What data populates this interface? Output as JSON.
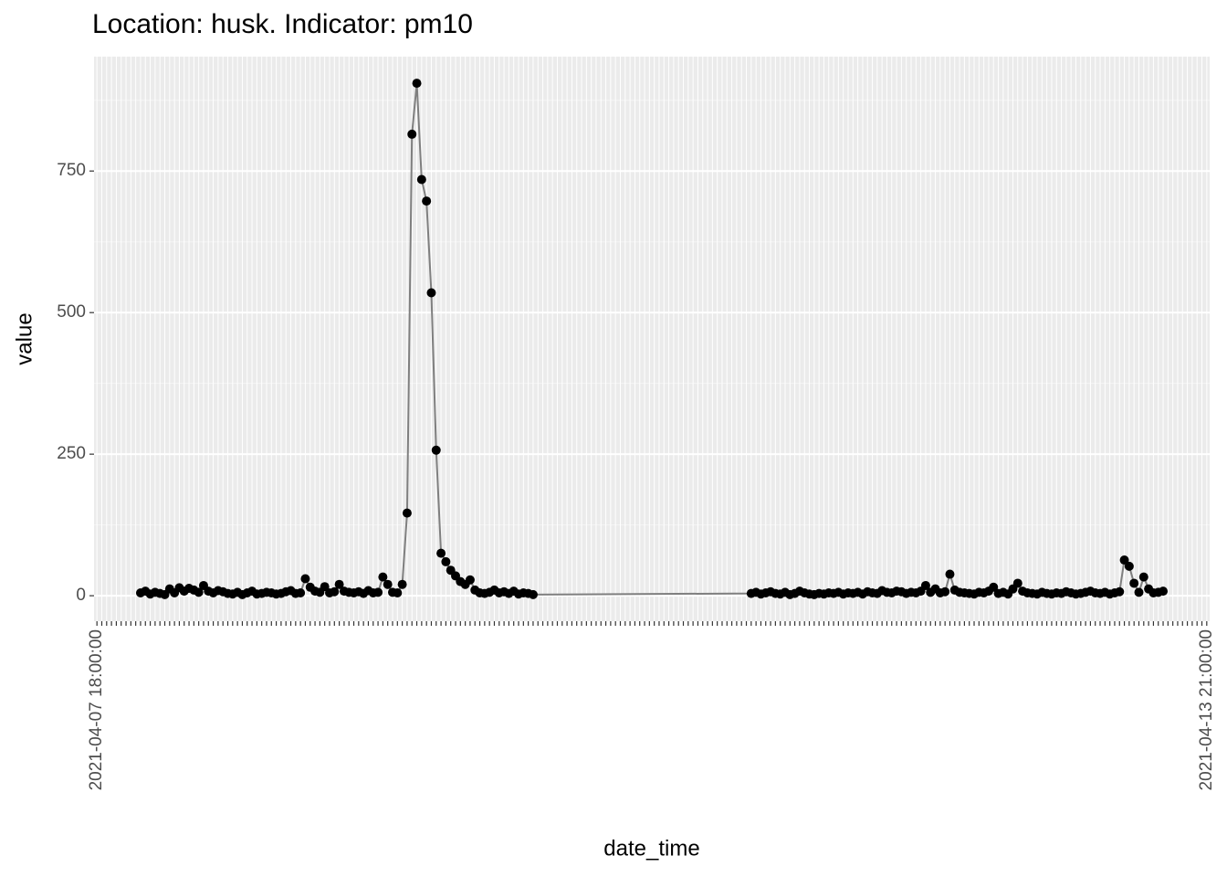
{
  "chart_data": {
    "type": "line",
    "title": "Location: husk. Indicator: pm10",
    "x_label": "date_time",
    "y_label": "value",
    "x": [
      10,
      11,
      12,
      13,
      14,
      15,
      16,
      17,
      18,
      19,
      20,
      21,
      22,
      23,
      24,
      25,
      26,
      27,
      28,
      29,
      30,
      31,
      32,
      33,
      34,
      35,
      36,
      37,
      38,
      39,
      40,
      41,
      42,
      43,
      44,
      45,
      46,
      47,
      48,
      49,
      50,
      51,
      52,
      53,
      54,
      55,
      56,
      57,
      58,
      59,
      60,
      61,
      62,
      63,
      64,
      65,
      66,
      67,
      68,
      69,
      70,
      71,
      72,
      73,
      74,
      75,
      76,
      77,
      78,
      79,
      80,
      81,
      82,
      83,
      84,
      85,
      86,
      87,
      88,
      89,
      90,
      91,
      136,
      137,
      138,
      139,
      140,
      141,
      142,
      143,
      144,
      145,
      146,
      147,
      148,
      149,
      150,
      151,
      152,
      153,
      154,
      155,
      156,
      157,
      158,
      159,
      160,
      161,
      162,
      163,
      164,
      165,
      166,
      167,
      168,
      169,
      170,
      171,
      172,
      173,
      174,
      175,
      176,
      177,
      178,
      179,
      180,
      181,
      182,
      183,
      184,
      185,
      186,
      187,
      188,
      189,
      190,
      191,
      192,
      193,
      194,
      195,
      196,
      197,
      198,
      199,
      200,
      201,
      202,
      203,
      204,
      205,
      206,
      207,
      208,
      209,
      210,
      211,
      212,
      213,
      214,
      215,
      216,
      217,
      218,
      219,
      220,
      221
    ],
    "values": [
      5,
      8,
      3,
      6,
      4,
      2,
      12,
      5,
      14,
      8,
      13,
      10,
      6,
      18,
      8,
      5,
      9,
      7,
      4,
      3,
      6,
      2,
      5,
      8,
      3,
      4,
      6,
      5,
      3,
      4,
      7,
      9,
      4,
      5,
      30,
      15,
      8,
      6,
      16,
      5,
      7,
      20,
      8,
      6,
      5,
      7,
      4,
      9,
      5,
      6,
      33,
      20,
      6,
      5,
      20,
      146,
      815,
      905,
      735,
      697,
      535,
      257,
      75,
      60,
      45,
      35,
      25,
      20,
      28,
      10,
      5,
      4,
      6,
      10,
      5,
      7,
      4,
      8,
      3,
      5,
      4,
      2,
      4,
      6,
      3,
      5,
      7,
      4,
      3,
      6,
      2,
      4,
      8,
      5,
      3,
      2,
      4,
      3,
      5,
      4,
      6,
      3,
      5,
      4,
      6,
      3,
      7,
      5,
      4,
      9,
      6,
      5,
      8,
      7,
      4,
      6,
      5,
      8,
      18,
      6,
      12,
      5,
      7,
      38,
      10,
      6,
      5,
      4,
      3,
      6,
      5,
      8,
      15,
      4,
      6,
      3,
      12,
      22,
      8,
      5,
      4,
      3,
      6,
      4,
      3,
      5,
      4,
      7,
      5,
      3,
      4,
      6,
      8,
      5,
      4,
      6,
      3,
      5,
      7,
      63,
      52,
      22,
      6,
      33,
      12,
      5,
      6,
      8
    ],
    "line_color": "#7f7f7f",
    "point_color": "#000000",
    "xlim": [
      0.4,
      230.6
    ],
    "xticks": [
      {
        "value": 1,
        "label": "2021-04-07 18:00:00"
      },
      {
        "value": 230,
        "label": "2021-04-13 21:00:00"
      }
    ],
    "ylim": [
      -45,
      952
    ],
    "yticks": [
      0,
      250,
      500,
      750
    ],
    "grid": true
  }
}
